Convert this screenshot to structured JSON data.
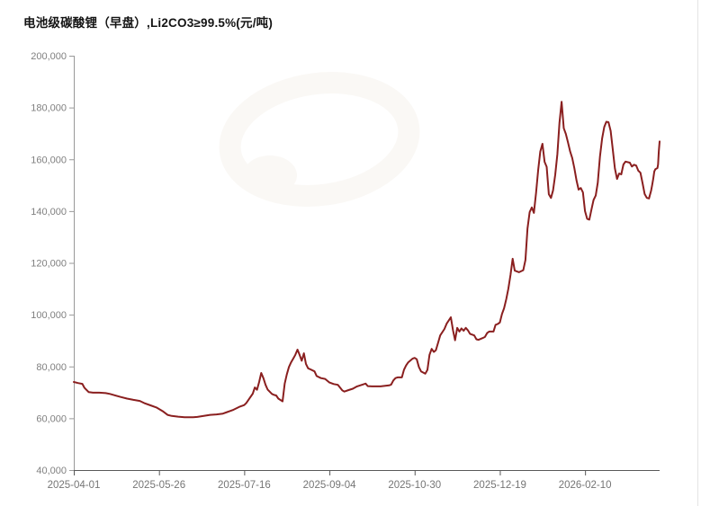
{
  "title": "电池级碳酸锂（早盘）,Li2CO3≥99.5%(元/吨)",
  "colors": {
    "line": "#8a1f1f",
    "x_axis": "#595959",
    "y_axis": "#999999",
    "x_label": "#757575",
    "y_label": "#808080",
    "title_text": "#141414",
    "watermark": "#faf8f5",
    "background": "#ffffff"
  },
  "chart_data": {
    "type": "line",
    "title": "电池级碳酸锂（早盘）,Li2CO3≥99.5%(元/吨)",
    "ylabel": "元/吨",
    "grid": "off",
    "legend": "none",
    "y_axis": {
      "min": 40000,
      "max": 200000,
      "tick_step": 20000,
      "tick_labels": [
        "40,000",
        "60,000",
        "80,000",
        "100,000",
        "120,000",
        "140,000",
        "160,000",
        "180,000",
        "200,000"
      ]
    },
    "x_axis": {
      "tick_labels": [
        "2025-04-01",
        "2025-05-26",
        "2025-07-16",
        "2025-09-04",
        "2025-10-30",
        "2025-12-19",
        "2026-02-10"
      ],
      "tick_day_interval": 40,
      "total_days": 275
    },
    "series": [
      {
        "name": "电池级碳酸锂（早盘）",
        "points": [
          [
            0,
            74000
          ],
          [
            2,
            73600
          ],
          [
            4,
            73300
          ],
          [
            5,
            71800
          ],
          [
            7,
            70100
          ],
          [
            9,
            69900
          ],
          [
            12,
            69900
          ],
          [
            15,
            69700
          ],
          [
            17,
            69400
          ],
          [
            19,
            68900
          ],
          [
            22,
            68200
          ],
          [
            25,
            67600
          ],
          [
            28,
            67100
          ],
          [
            31,
            66700
          ],
          [
            33,
            65900
          ],
          [
            36,
            65000
          ],
          [
            39,
            64100
          ],
          [
            42,
            62600
          ],
          [
            44,
            61300
          ],
          [
            46,
            60900
          ],
          [
            49,
            60600
          ],
          [
            52,
            60400
          ],
          [
            56,
            60400
          ],
          [
            58,
            60500
          ],
          [
            61,
            60900
          ],
          [
            64,
            61300
          ],
          [
            67,
            61500
          ],
          [
            70,
            61800
          ],
          [
            72,
            62400
          ],
          [
            75,
            63300
          ],
          [
            78,
            64500
          ],
          [
            80,
            65100
          ],
          [
            81,
            65900
          ],
          [
            82,
            67100
          ],
          [
            84,
            69500
          ],
          [
            85,
            71900
          ],
          [
            86,
            71000
          ],
          [
            87,
            74000
          ],
          [
            88,
            77500
          ],
          [
            89,
            75500
          ],
          [
            90,
            72900
          ],
          [
            91,
            71100
          ],
          [
            93,
            69400
          ],
          [
            94,
            69000
          ],
          [
            95,
            68800
          ],
          [
            96,
            67600
          ],
          [
            98,
            66500
          ],
          [
            99,
            73400
          ],
          [
            100,
            76900
          ],
          [
            101,
            79800
          ],
          [
            102,
            81600
          ],
          [
            103,
            83000
          ],
          [
            104,
            84500
          ],
          [
            105,
            86500
          ],
          [
            106,
            84500
          ],
          [
            107,
            82200
          ],
          [
            108,
            85100
          ],
          [
            109,
            81000
          ],
          [
            110,
            79300
          ],
          [
            111,
            78900
          ],
          [
            113,
            78100
          ],
          [
            114,
            76300
          ],
          [
            116,
            75500
          ],
          [
            118,
            75200
          ],
          [
            120,
            73800
          ],
          [
            122,
            73200
          ],
          [
            124,
            72900
          ],
          [
            126,
            70800
          ],
          [
            127,
            70300
          ],
          [
            129,
            70900
          ],
          [
            131,
            71400
          ],
          [
            133,
            72300
          ],
          [
            137,
            73400
          ],
          [
            138,
            72400
          ],
          [
            140,
            72300
          ],
          [
            144,
            72300
          ],
          [
            148,
            72700
          ],
          [
            149,
            73000
          ],
          [
            150,
            74600
          ],
          [
            151,
            75500
          ],
          [
            152,
            75800
          ],
          [
            154,
            75800
          ],
          [
            155,
            78700
          ],
          [
            156,
            80400
          ],
          [
            157,
            81600
          ],
          [
            159,
            83000
          ],
          [
            160,
            83300
          ],
          [
            161,
            82800
          ],
          [
            162,
            79800
          ],
          [
            163,
            78100
          ],
          [
            165,
            77200
          ],
          [
            166,
            78700
          ],
          [
            167,
            84500
          ],
          [
            168,
            86800
          ],
          [
            169,
            85600
          ],
          [
            170,
            86300
          ],
          [
            171,
            89100
          ],
          [
            172,
            92000
          ],
          [
            174,
            94500
          ],
          [
            175,
            96500
          ],
          [
            177,
            99000
          ],
          [
            178,
            94000
          ],
          [
            179,
            90100
          ],
          [
            180,
            94900
          ],
          [
            181,
            93500
          ],
          [
            182,
            94700
          ],
          [
            183,
            93800
          ],
          [
            184,
            94900
          ],
          [
            185,
            94000
          ],
          [
            186,
            92600
          ],
          [
            188,
            92000
          ],
          [
            189,
            90500
          ],
          [
            190,
            90300
          ],
          [
            192,
            91000
          ],
          [
            193,
            91400
          ],
          [
            194,
            92900
          ],
          [
            195,
            93500
          ],
          [
            197,
            93500
          ],
          [
            198,
            96100
          ],
          [
            199,
            96400
          ],
          [
            200,
            97000
          ],
          [
            201,
            100200
          ],
          [
            202,
            102500
          ],
          [
            203,
            106000
          ],
          [
            204,
            110000
          ],
          [
            205,
            115300
          ],
          [
            206,
            121600
          ],
          [
            207,
            117000
          ],
          [
            209,
            116400
          ],
          [
            211,
            117200
          ],
          [
            212,
            121100
          ],
          [
            213,
            133300
          ],
          [
            214,
            139600
          ],
          [
            215,
            141400
          ],
          [
            216,
            139300
          ],
          [
            217,
            147000
          ],
          [
            218,
            156000
          ],
          [
            219,
            163000
          ],
          [
            220,
            166000
          ],
          [
            221,
            159000
          ],
          [
            222,
            157100
          ],
          [
            223,
            146500
          ],
          [
            224,
            145100
          ],
          [
            225,
            148000
          ],
          [
            226,
            154000
          ],
          [
            227,
            162000
          ],
          [
            228,
            174000
          ],
          [
            229,
            182200
          ],
          [
            230,
            172000
          ],
          [
            231,
            169800
          ],
          [
            232,
            166500
          ],
          [
            233,
            163000
          ],
          [
            234,
            160500
          ],
          [
            235,
            156500
          ],
          [
            236,
            151800
          ],
          [
            237,
            148300
          ],
          [
            238,
            148900
          ],
          [
            239,
            147200
          ],
          [
            240,
            140000
          ],
          [
            241,
            137000
          ],
          [
            242,
            136700
          ],
          [
            243,
            140500
          ],
          [
            244,
            144300
          ],
          [
            245,
            146000
          ],
          [
            246,
            151000
          ],
          [
            247,
            161000
          ],
          [
            248,
            168000
          ],
          [
            249,
            172500
          ],
          [
            250,
            174500
          ],
          [
            251,
            174300
          ],
          [
            252,
            171000
          ],
          [
            253,
            164000
          ],
          [
            254,
            156500
          ],
          [
            255,
            152400
          ],
          [
            256,
            154500
          ],
          [
            257,
            154200
          ],
          [
            258,
            158000
          ],
          [
            259,
            159100
          ],
          [
            261,
            158700
          ],
          [
            262,
            157200
          ],
          [
            263,
            157900
          ],
          [
            264,
            157600
          ],
          [
            265,
            155600
          ],
          [
            266,
            154800
          ],
          [
            267,
            150700
          ],
          [
            268,
            146600
          ],
          [
            269,
            145100
          ],
          [
            270,
            144900
          ],
          [
            271,
            147800
          ],
          [
            271.5,
            150000
          ],
          [
            272,
            152400
          ],
          [
            272.5,
            155300
          ],
          [
            273,
            156200
          ],
          [
            274,
            156600
          ],
          [
            274.3,
            158000
          ],
          [
            274.6,
            163000
          ],
          [
            275,
            166900
          ]
        ]
      }
    ]
  }
}
